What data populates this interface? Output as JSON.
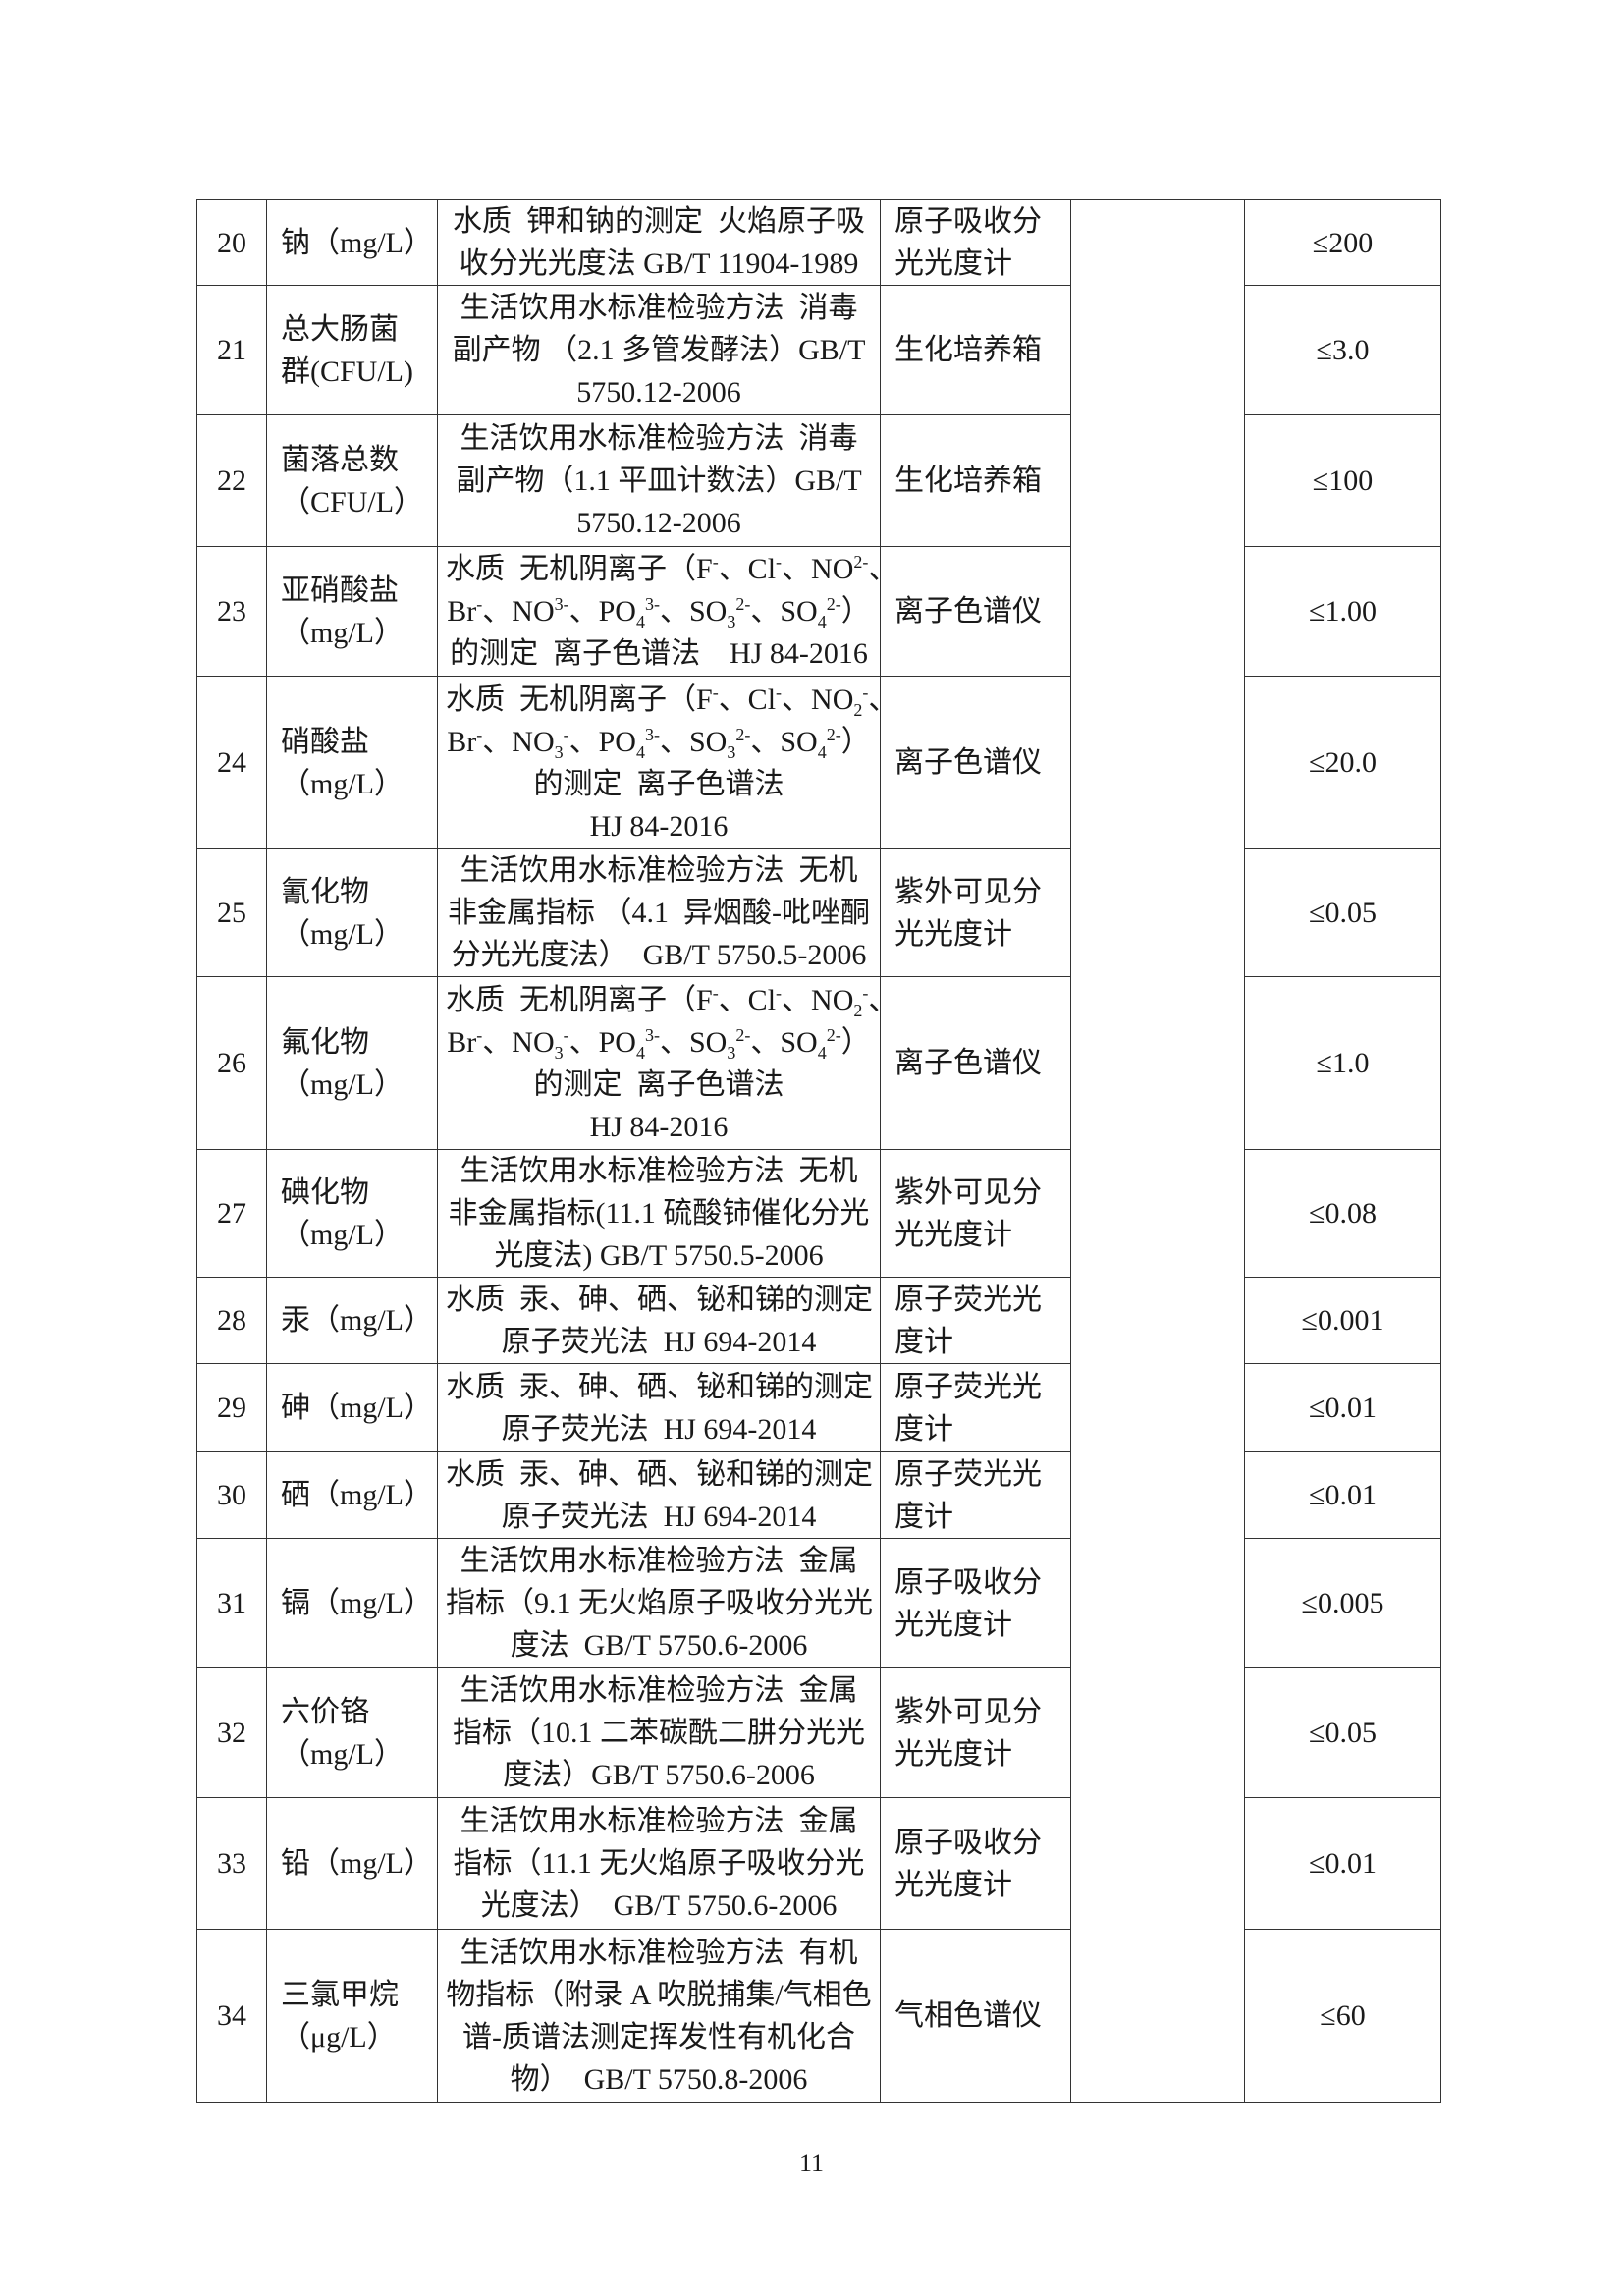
{
  "rows": [
    {
      "no": "20",
      "name": [
        "钠（mg/L）"
      ],
      "method": [
        [
          "水质  钾和钠的测定  火焰原子吸"
        ],
        [
          "收分光光度法 GB/T 11904-1989"
        ]
      ],
      "instrument": [
        "原子吸收分",
        "光光度计"
      ],
      "limit": "≤200"
    },
    {
      "no": "21",
      "name": [
        "总大肠菌",
        "群(CFU/L)"
      ],
      "method": [
        [
          "生活饮用水标准检验方法  消毒"
        ],
        [
          "副产物 （2.1 多管发酵法）GB/T"
        ],
        [
          "5750.12-2006"
        ]
      ],
      "instrument": [
        "生化培养箱"
      ],
      "limit": "≤3.0"
    },
    {
      "no": "22",
      "name": [
        "菌落总数",
        "（CFU/L）"
      ],
      "method": [
        [
          "生活饮用水标准检验方法  消毒"
        ],
        [
          "副产物（1.1 平皿计数法）GB/T"
        ],
        [
          "5750.12-2006"
        ]
      ],
      "instrument": [
        "生化培养箱"
      ],
      "limit": "≤100"
    },
    {
      "no": "23",
      "name": [
        "亚硝酸盐",
        "（mg/L）"
      ],
      "method": [
        [
          "水质  无机阴离子（F",
          {
            "sup": "-"
          },
          "、Cl",
          {
            "sup": "-"
          },
          "、NO",
          {
            "sup": "2-"
          },
          "、"
        ],
        [
          "Br",
          {
            "sup": "-"
          },
          "、NO",
          {
            "sup": "3-"
          },
          "、PO",
          {
            "sub": "4"
          },
          {
            "sup": "3-"
          },
          "、SO",
          {
            "sub": "3"
          },
          {
            "sup": "2-"
          },
          "、SO",
          {
            "sub": "4"
          },
          {
            "sup": "2-"
          },
          "）"
        ],
        [
          "的测定  离子色谱法    HJ 84-2016"
        ]
      ],
      "instrument": [
        "离子色谱仪"
      ],
      "limit": "≤1.00"
    },
    {
      "no": "24",
      "name": [
        "硝酸盐",
        "（mg/L）"
      ],
      "method": [
        [
          "水质  无机阴离子（F",
          {
            "sup": "-"
          },
          "、Cl",
          {
            "sup": "-"
          },
          "、NO",
          {
            "sub": "2"
          },
          {
            "sup": "-"
          },
          "、"
        ],
        [
          "Br",
          {
            "sup": "-"
          },
          "、NO",
          {
            "sub": "3"
          },
          {
            "sup": "-"
          },
          "、PO",
          {
            "sub": "4"
          },
          {
            "sup": "3-"
          },
          "、SO",
          {
            "sub": "3"
          },
          {
            "sup": "2-"
          },
          "、SO",
          {
            "sub": "4"
          },
          {
            "sup": "2-"
          },
          "）"
        ],
        [
          "的测定  离子色谱法"
        ],
        [
          "HJ 84-2016"
        ]
      ],
      "instrument": [
        "离子色谱仪"
      ],
      "limit": "≤20.0"
    },
    {
      "no": "25",
      "name": [
        "氰化物",
        "（mg/L）"
      ],
      "method": [
        [
          "生活饮用水标准检验方法  无机"
        ],
        [
          "非金属指标 （4.1  异烟酸-吡唑酮"
        ],
        [
          "分光光度法）  GB/T 5750.5-2006"
        ]
      ],
      "instrument": [
        "紫外可见分",
        "光光度计"
      ],
      "limit": "≤0.05"
    },
    {
      "no": "26",
      "name": [
        "氟化物",
        "（mg/L）"
      ],
      "method": [
        [
          "水质  无机阴离子（F",
          {
            "sup": "-"
          },
          "、Cl",
          {
            "sup": "-"
          },
          "、NO",
          {
            "sub": "2"
          },
          {
            "sup": "-"
          },
          "、"
        ],
        [
          "Br",
          {
            "sup": "-"
          },
          "、NO",
          {
            "sub": "3"
          },
          {
            "sup": "-"
          },
          "、PO",
          {
            "sub": "4"
          },
          {
            "sup": "3-"
          },
          "、SO",
          {
            "sub": "3"
          },
          {
            "sup": "2-"
          },
          "、SO",
          {
            "sub": "4"
          },
          {
            "sup": "2-"
          },
          "）"
        ],
        [
          "的测定  离子色谱法"
        ],
        [
          "HJ 84-2016"
        ]
      ],
      "instrument": [
        "离子色谱仪"
      ],
      "limit": "≤1.0"
    },
    {
      "no": "27",
      "name": [
        "碘化物",
        "（mg/L）"
      ],
      "method": [
        [
          "生活饮用水标准检验方法  无机"
        ],
        [
          "非金属指标(11.1 硫酸铈催化分光"
        ],
        [
          "光度法) GB/T 5750.5-2006"
        ]
      ],
      "instrument": [
        "紫外可见分",
        "光光度计"
      ],
      "limit": "≤0.08"
    },
    {
      "no": "28",
      "name": [
        "汞（mg/L）"
      ],
      "method": [
        [
          "水质  汞、砷、硒、铋和锑的测定"
        ],
        [
          "原子荧光法  HJ 694-2014"
        ]
      ],
      "instrument": [
        "原子荧光光",
        "度计"
      ],
      "limit": "≤0.001"
    },
    {
      "no": "29",
      "name": [
        "砷（mg/L）"
      ],
      "method": [
        [
          "水质  汞、砷、硒、铋和锑的测定"
        ],
        [
          "原子荧光法  HJ 694-2014"
        ]
      ],
      "instrument": [
        "原子荧光光",
        "度计"
      ],
      "limit": "≤0.01"
    },
    {
      "no": "30",
      "name": [
        "硒（mg/L）"
      ],
      "method": [
        [
          "水质  汞、砷、硒、铋和锑的测定"
        ],
        [
          "原子荧光法  HJ 694-2014"
        ]
      ],
      "instrument": [
        "原子荧光光",
        "度计"
      ],
      "limit": "≤0.01"
    },
    {
      "no": "31",
      "name": [
        "镉（mg/L）"
      ],
      "method": [
        [
          "生活饮用水标准检验方法  金属"
        ],
        [
          "指标（9.1 无火焰原子吸收分光光"
        ],
        [
          "度法  GB/T 5750.6-2006"
        ]
      ],
      "instrument": [
        "原子吸收分",
        "光光度计"
      ],
      "limit": "≤0.005"
    },
    {
      "no": "32",
      "name": [
        "六价铬",
        "（mg/L）"
      ],
      "method": [
        [
          "生活饮用水标准检验方法  金属"
        ],
        [
          "指标（10.1 二苯碳酰二肼分光光"
        ],
        [
          "度法）GB/T 5750.6-2006"
        ]
      ],
      "instrument": [
        "紫外可见分",
        "光光度计"
      ],
      "limit": "≤0.05"
    },
    {
      "no": "33",
      "name": [
        "铅（mg/L）"
      ],
      "method": [
        [
          "生活饮用水标准检验方法  金属"
        ],
        [
          "指标（11.1 无火焰原子吸收分光"
        ],
        [
          "光度法）  GB/T 5750.6-2006"
        ]
      ],
      "instrument": [
        "原子吸收分",
        "光光度计"
      ],
      "limit": "≤0.01"
    },
    {
      "no": "34",
      "name": [
        "三氯甲烷",
        "（μg/L）"
      ],
      "method": [
        [
          "生活饮用水标准检验方法  有机"
        ],
        [
          "物指标（附录 A 吹脱捕集/气相色"
        ],
        [
          "谱-质谱法测定挥发性有机化合"
        ],
        [
          "物）  GB/T 5750.8-2006"
        ]
      ],
      "instrument": [
        "气相色谱仪"
      ],
      "limit": "≤60"
    }
  ],
  "page_number": "11"
}
